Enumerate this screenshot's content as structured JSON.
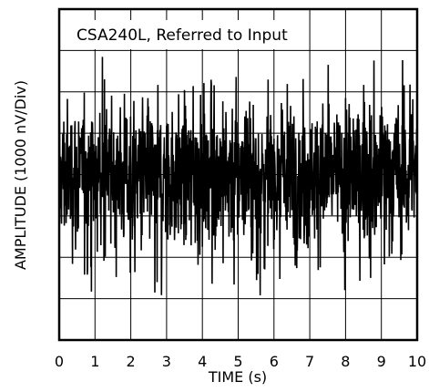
{
  "chart_data": {
    "type": "line",
    "title": "CSA240L, Referred to Input",
    "xlabel": "TIME (s)",
    "ylabel": "AMPLITUDE (1000 nV/Div)",
    "xlim": [
      0,
      10
    ],
    "x_ticks": [
      "0",
      "1",
      "2",
      "3",
      "4",
      "5",
      "6",
      "7",
      "8",
      "9",
      "10"
    ],
    "ylim": [
      -4.5,
      4.5
    ],
    "y_divisions": 8,
    "grid": true,
    "series": [
      {
        "color": "#000000",
        "description_of_envelope": "noise waveform",
        "x_start": 0,
        "x_end": 10,
        "typical_amplitude_divs": 1.5,
        "peak_positive_divs": 3.2,
        "peak_negative_divs": -3.3
      }
    ]
  }
}
